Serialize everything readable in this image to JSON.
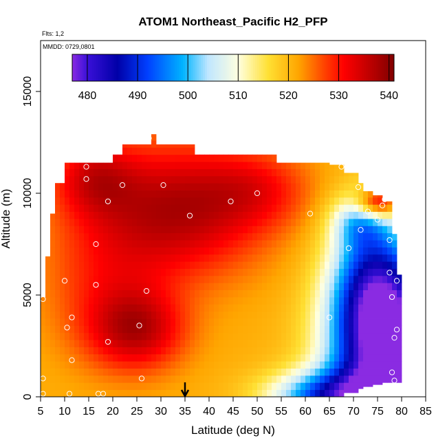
{
  "chart_data": {
    "type": "heatmap",
    "title": "ATOM1 Northeast_Pacific H2_PFP",
    "annotations": [
      "Flts: 1,2",
      "MMDD: 0729,0801"
    ],
    "xlabel": "Latitude (deg N)",
    "ylabel": "Altitude (m)",
    "xlim": [
      5,
      85
    ],
    "ylim": [
      0,
      17500
    ],
    "x_ticks": [
      5,
      10,
      15,
      20,
      25,
      30,
      35,
      40,
      45,
      50,
      55,
      60,
      65,
      70,
      75,
      80,
      85
    ],
    "y_ticks": [
      0,
      5000,
      10000,
      15000
    ],
    "colorbar": {
      "range": [
        477,
        541
      ],
      "ticks": [
        480,
        490,
        500,
        510,
        520,
        530,
        540
      ],
      "stops": [
        {
          "value": 477,
          "color": "#8a2be2"
        },
        {
          "value": 480,
          "color": "#3a10d8"
        },
        {
          "value": 486,
          "color": "#0000a8"
        },
        {
          "value": 492,
          "color": "#0040ff"
        },
        {
          "value": 499,
          "color": "#00b4ff"
        },
        {
          "value": 504,
          "color": "#bfe6ff"
        },
        {
          "value": 510,
          "color": "#ffffe0"
        },
        {
          "value": 516,
          "color": "#ffe033"
        },
        {
          "value": 522,
          "color": "#ffa500"
        },
        {
          "value": 527,
          "color": "#ff4500"
        },
        {
          "value": 531,
          "color": "#ff0000"
        },
        {
          "value": 536,
          "color": "#c00000"
        },
        {
          "value": 541,
          "color": "#800000"
        }
      ]
    },
    "profile_envelope": [
      [
        5.0,
        0,
        4900
      ],
      [
        6.0,
        0,
        6900
      ],
      [
        7.0,
        0,
        9000
      ],
      [
        8.0,
        0,
        10500
      ],
      [
        10.0,
        0,
        11500
      ],
      [
        15.0,
        0,
        11500
      ],
      [
        20.0,
        0,
        11900
      ],
      [
        22.0,
        0,
        12400
      ],
      [
        27.0,
        0,
        12400
      ],
      [
        28.0,
        0,
        12900
      ],
      [
        29.0,
        0,
        12400
      ],
      [
        35.0,
        0,
        12400
      ],
      [
        37.0,
        0,
        11900
      ],
      [
        45.0,
        0,
        11900
      ],
      [
        54.0,
        0,
        11500
      ],
      [
        65.0,
        0,
        11400
      ],
      [
        68.0,
        200,
        11000
      ],
      [
        71.0,
        400,
        10500
      ],
      [
        72.0,
        500,
        10100
      ],
      [
        74.0,
        600,
        9900
      ],
      [
        76.0,
        700,
        9600
      ],
      [
        77.5,
        700,
        8000
      ],
      [
        79.0,
        700,
        6000
      ],
      [
        79.5,
        3000,
        4000
      ]
    ],
    "field_model": {
      "background": 521,
      "components": [
        {
          "lat": 33,
          "alt": 9200,
          "amp": 16,
          "sigma_lat": 13,
          "sigma_alt": 2300
        },
        {
          "lat": 25,
          "alt": 3300,
          "amp": 14,
          "sigma_lat": 7,
          "sigma_alt": 1400
        },
        {
          "lat": 16,
          "alt": 10800,
          "amp": 10,
          "sigma_lat": 6,
          "sigma_alt": 1300
        },
        {
          "lat": 18,
          "alt": 5500,
          "amp": 6,
          "sigma_lat": 9,
          "sigma_alt": 2500
        },
        {
          "lat": 50,
          "alt": 10200,
          "amp": 7,
          "sigma_lat": 8,
          "sigma_alt": 1300
        },
        {
          "lat": 78,
          "alt": 1800,
          "amp": -44,
          "sigma_lat": 9,
          "sigma_alt": 3400
        },
        {
          "lat": 74,
          "alt": 5500,
          "amp": -22,
          "sigma_lat": 6,
          "sigma_alt": 2500
        },
        {
          "lat": 65,
          "alt": 0,
          "amp": -25,
          "sigma_lat": 9,
          "sigma_alt": 900
        },
        {
          "lat": 75,
          "alt": 9500,
          "amp": 20,
          "sigma_lat": 3,
          "sigma_alt": 500
        },
        {
          "lat": 71,
          "alt": 8600,
          "amp": -12,
          "sigma_lat": 4,
          "sigma_alt": 900
        }
      ]
    },
    "sample_points": [
      [
        5.5,
        150
      ],
      [
        5.5,
        900
      ],
      [
        5.5,
        4800
      ],
      [
        8.0,
        11300
      ],
      [
        10.0,
        5700
      ],
      [
        10.5,
        3400
      ],
      [
        11.0,
        150
      ],
      [
        11.5,
        3900
      ],
      [
        11.5,
        1800
      ],
      [
        14.5,
        11300
      ],
      [
        14.5,
        10700
      ],
      [
        16.5,
        5500
      ],
      [
        16.5,
        7500
      ],
      [
        17.0,
        150
      ],
      [
        18.0,
        150
      ],
      [
        19.0,
        2700
      ],
      [
        19.0,
        9600
      ],
      [
        22.0,
        10400
      ],
      [
        25.5,
        3500
      ],
      [
        26.0,
        900
      ],
      [
        27.0,
        5200
      ],
      [
        27.5,
        12700
      ],
      [
        30.5,
        10400
      ],
      [
        36.0,
        8900
      ],
      [
        44.5,
        9600
      ],
      [
        50.0,
        10000
      ],
      [
        61.0,
        9000
      ],
      [
        65.0,
        3900
      ],
      [
        67.5,
        11300
      ],
      [
        69.0,
        7300
      ],
      [
        71.5,
        8200
      ],
      [
        71.0,
        10300
      ],
      [
        73.0,
        9100
      ],
      [
        75.0,
        8700
      ],
      [
        76.0,
        9400
      ],
      [
        76.5,
        9700
      ],
      [
        77.5,
        7700
      ],
      [
        77.5,
        6100
      ],
      [
        78.0,
        4900
      ],
      [
        78.0,
        1200
      ],
      [
        78.5,
        800
      ],
      [
        78.5,
        2900
      ],
      [
        79.0,
        3300
      ],
      [
        79.0,
        5700
      ]
    ],
    "marker": {
      "latitude": 35,
      "symbol": "down-arrow"
    }
  }
}
